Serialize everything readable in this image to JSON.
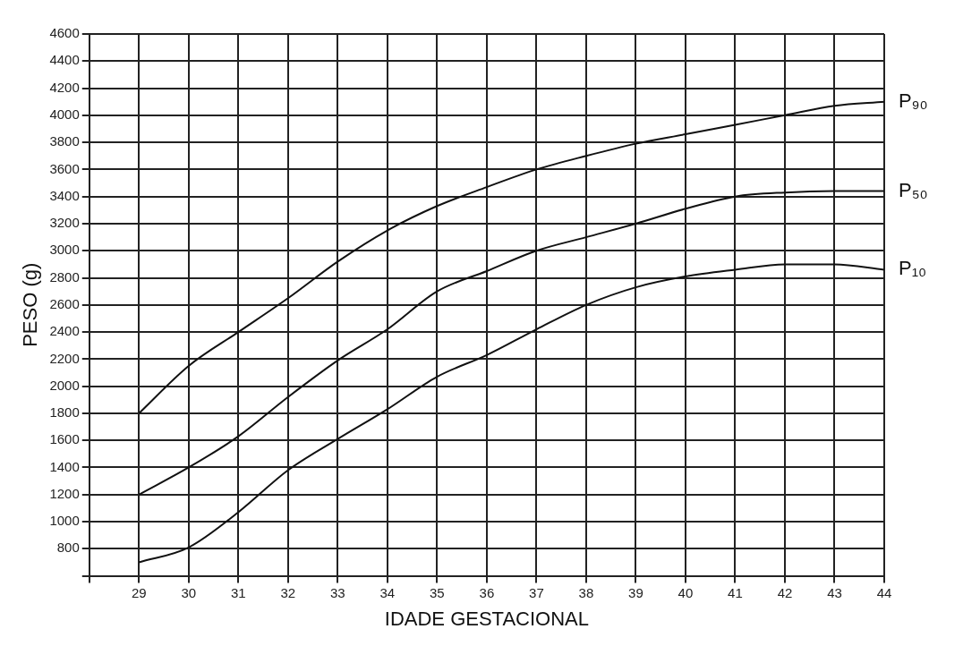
{
  "chart_data": {
    "type": "line",
    "xlabel": "IDADE GESTACIONAL",
    "ylabel": "PESO (g)",
    "x": [
      29,
      30,
      31,
      32,
      33,
      34,
      35,
      36,
      37,
      38,
      39,
      40,
      41,
      42,
      43,
      44
    ],
    "series": [
      {
        "name": "P₉₀",
        "color": "#111111",
        "values": [
          1800,
          2150,
          2400,
          2650,
          2920,
          3150,
          3330,
          3470,
          3600,
          3700,
          3790,
          3860,
          3930,
          4000,
          4070,
          4100
        ]
      },
      {
        "name": "P₅₀",
        "color": "#111111",
        "values": [
          1200,
          1400,
          1630,
          1920,
          2190,
          2420,
          2700,
          2850,
          3000,
          3100,
          3200,
          3310,
          3400,
          3430,
          3440,
          3440
        ]
      },
      {
        "name": "P₁₀",
        "color": "#111111",
        "values": [
          700,
          810,
          1070,
          1380,
          1610,
          1830,
          2070,
          2230,
          2420,
          2600,
          2730,
          2810,
          2860,
          2900,
          2900,
          2860
        ]
      }
    ],
    "xlim": [
      28,
      44
    ],
    "xticks": [
      29,
      30,
      31,
      32,
      33,
      34,
      35,
      36,
      37,
      38,
      39,
      40,
      41,
      42,
      43,
      44
    ],
    "ylim": [
      600,
      4600
    ],
    "yticks": [
      800,
      1000,
      1200,
      1400,
      1600,
      1800,
      2000,
      2200,
      2400,
      2600,
      2800,
      3000,
      3200,
      3400,
      3600,
      3800,
      4000,
      4200,
      4400,
      4600
    ],
    "grid": true,
    "legend": false,
    "marker": "none",
    "line_style": "solid"
  }
}
